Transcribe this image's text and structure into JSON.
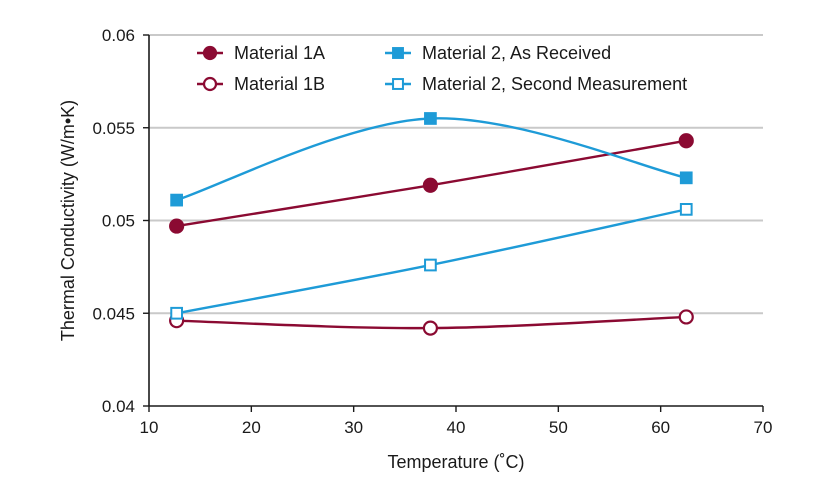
{
  "chart_data": {
    "type": "line",
    "title": "",
    "xlabel": "Temperature (˚C)",
    "ylabel": "Thermal Conductivity (W/m•K)",
    "xlim": [
      10,
      70
    ],
    "ylim": [
      0.04,
      0.06
    ],
    "xticks": [
      10,
      20,
      30,
      40,
      50,
      60,
      70
    ],
    "yticks": [
      0.04,
      0.045,
      0.05,
      0.055,
      0.06
    ],
    "xtick_labels": [
      "10",
      "20",
      "30",
      "40",
      "50",
      "60",
      "70"
    ],
    "ytick_labels": [
      "0.04",
      "0.045",
      "0.05",
      "0.055",
      "0.06"
    ],
    "grid": "horizontal",
    "legend_position": "top",
    "series": [
      {
        "name": "Material 1A",
        "color": "#8b0a32",
        "marker": "circle-filled",
        "x": [
          12.7,
          37.5,
          62.5
        ],
        "y": [
          0.0497,
          0.0519,
          0.0543
        ]
      },
      {
        "name": "Material 1B",
        "color": "#8b0a32",
        "marker": "circle-open",
        "x": [
          12.7,
          37.5,
          62.5
        ],
        "y": [
          0.0446,
          0.0442,
          0.0448
        ]
      },
      {
        "name": "Material 2, As Received",
        "color": "#1e9bd7",
        "marker": "square-filled",
        "x": [
          12.7,
          37.5,
          62.5
        ],
        "y": [
          0.0511,
          0.0555,
          0.0523
        ]
      },
      {
        "name": "Material 2, Second Measurement",
        "color": "#1e9bd7",
        "marker": "square-open",
        "x": [
          12.7,
          37.5,
          62.5
        ],
        "y": [
          0.045,
          0.0476,
          0.0506
        ]
      }
    ]
  }
}
